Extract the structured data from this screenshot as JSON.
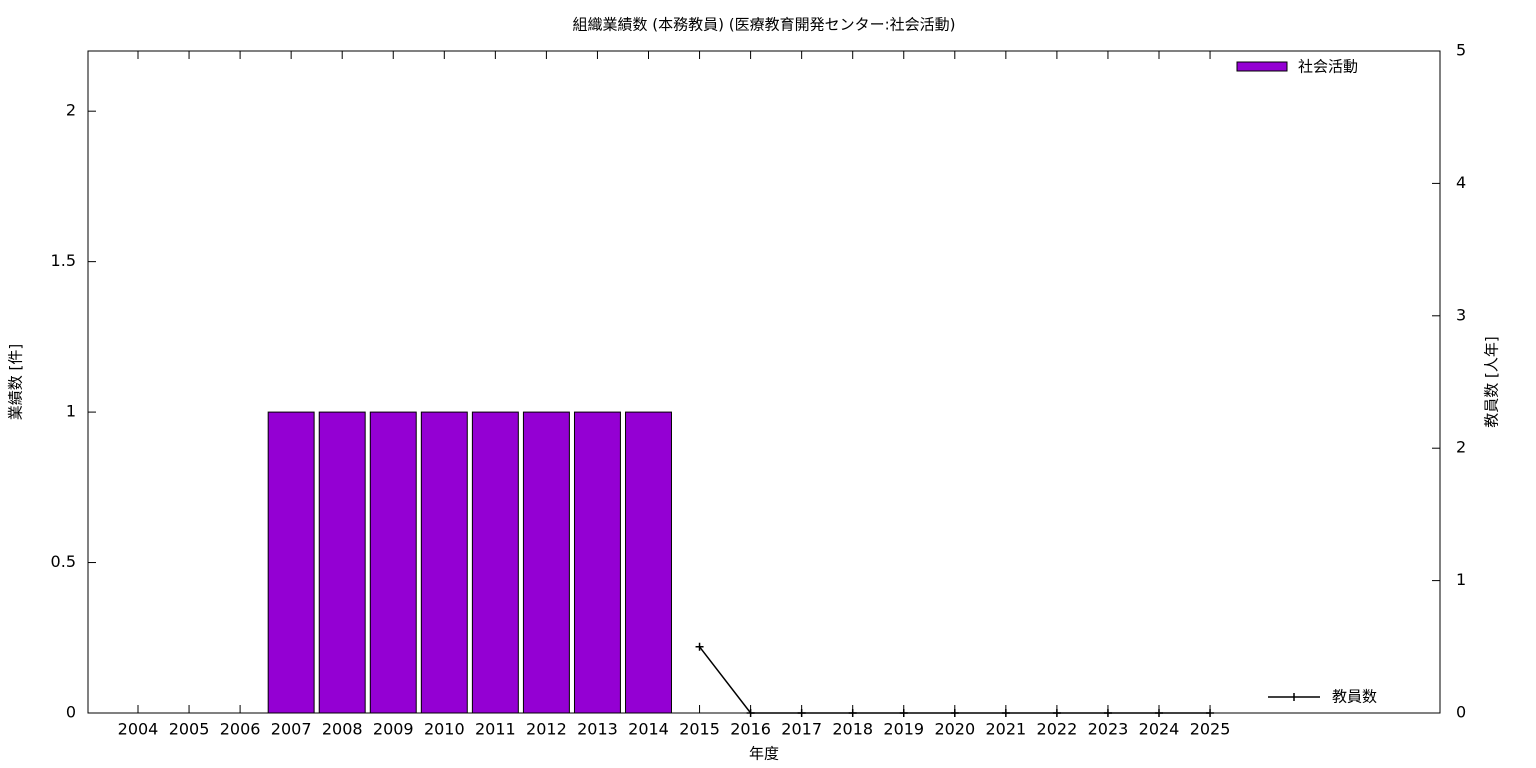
{
  "chart_data": {
    "type": "bar_line",
    "title": "組織業績数 (本務教員) (医療教育開発センター:社会活動)",
    "x_label": "年度",
    "y_label": "業績数 [件]",
    "y2_label": "教員数 [人年]",
    "categories": [
      "2004",
      "2005",
      "2006",
      "2007",
      "2008",
      "2009",
      "2010",
      "2011",
      "2012",
      "2013",
      "2014",
      "2015",
      "2016",
      "2017",
      "2018",
      "2019",
      "2020",
      "2021",
      "2022",
      "2023",
      "2024",
      "2025"
    ],
    "series": [
      {
        "name": "社会活動",
        "type": "bar",
        "color": "#9400d3",
        "values": [
          0,
          0,
          0,
          1,
          1,
          1,
          1,
          1,
          1,
          1,
          1,
          0,
          0,
          0,
          0,
          0,
          0,
          0,
          0,
          0,
          0,
          0
        ]
      },
      {
        "name": "教員数",
        "type": "line",
        "color": "#000000",
        "axis": "y2",
        "values": [
          null,
          null,
          null,
          null,
          null,
          null,
          null,
          null,
          null,
          null,
          null,
          0.5,
          0,
          0,
          0,
          0,
          0,
          0,
          0,
          0,
          0,
          0
        ]
      }
    ],
    "ylim": [
      0,
      2.2
    ],
    "yticks": [
      0,
      0.5,
      1,
      1.5,
      2
    ],
    "y2lim": [
      0,
      5
    ],
    "y2ticks": [
      0,
      1,
      2,
      3,
      4,
      5
    ]
  }
}
